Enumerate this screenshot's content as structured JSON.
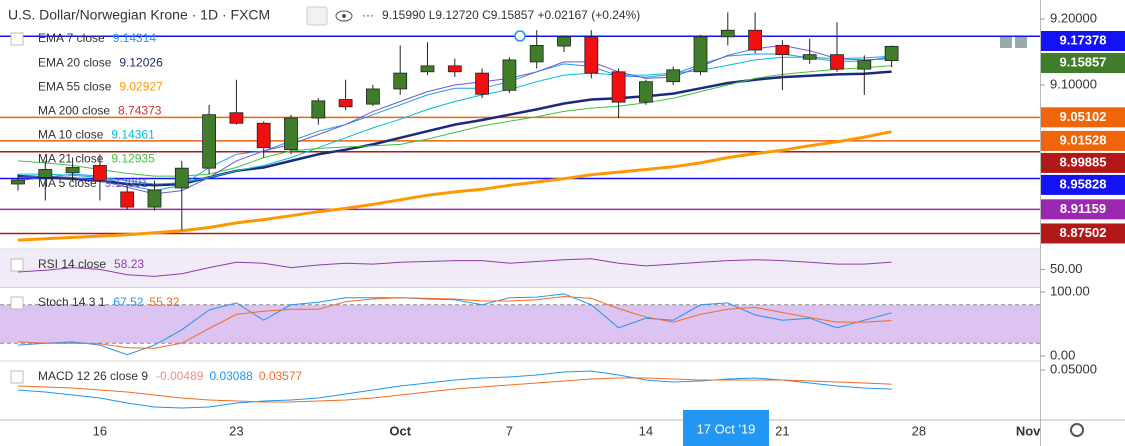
{
  "chart_data": [
    {
      "type": "candlestick",
      "title": "U.S. Dollar/Norwegian Krone · 1D · FXCM",
      "subtitle": "9.15990 L9.12720 C9.15857 +0.02167 (+0.24%)",
      "categories": [
        null,
        null,
        null,
        "16",
        null,
        null,
        null,
        null,
        "23",
        null,
        null,
        null,
        null,
        null,
        "Oct",
        null,
        null,
        null,
        "7",
        null,
        null,
        null,
        null,
        "14",
        null,
        null,
        null,
        null,
        "21",
        null,
        null,
        null,
        null,
        "28",
        null,
        null,
        null,
        "Nov"
      ],
      "open": [
        8.95,
        8.96,
        8.967,
        8.978,
        8.938,
        8.915,
        8.944,
        8.974,
        9.058,
        9.042,
        9.002,
        9.05,
        9.078,
        9.071,
        9.094,
        9.12,
        9.129,
        9.118,
        9.092,
        9.135,
        9.159,
        9.173,
        9.12,
        9.074,
        9.105,
        9.12,
        9.173,
        9.183,
        9.16,
        9.139,
        9.146,
        9.124,
        9.1369,
        null,
        null,
        null,
        null,
        null
      ],
      "high": [
        8.965,
        8.985,
        8.99,
        8.995,
        8.948,
        8.955,
        8.985,
        9.07,
        9.108,
        9.045,
        9.055,
        9.08,
        9.108,
        9.1,
        9.16,
        9.165,
        9.14,
        9.125,
        9.142,
        9.183,
        9.175,
        9.183,
        9.125,
        9.108,
        9.128,
        9.176,
        9.21,
        9.21,
        9.168,
        9.17,
        9.195,
        9.145,
        9.1599,
        null,
        null,
        null,
        null,
        null
      ],
      "low": [
        8.94,
        8.925,
        8.955,
        8.925,
        8.911,
        8.91,
        8.88,
        8.965,
        9.04,
        8.99,
        8.995,
        9.04,
        9.062,
        9.068,
        9.085,
        9.115,
        9.112,
        9.08,
        9.088,
        9.125,
        9.15,
        9.11,
        9.05,
        9.07,
        9.1,
        9.115,
        9.16,
        9.148,
        9.092,
        9.132,
        9.12,
        9.085,
        9.1272,
        null,
        null,
        null,
        null,
        null
      ],
      "close": [
        8.956,
        8.972,
        8.975,
        8.955,
        8.915,
        8.941,
        8.974,
        9.055,
        9.042,
        9.005,
        9.05,
        9.076,
        9.067,
        9.094,
        9.118,
        9.129,
        9.12,
        9.086,
        9.138,
        9.16,
        9.173,
        9.118,
        9.074,
        9.105,
        9.123,
        9.173,
        9.183,
        9.153,
        9.146,
        9.146,
        9.124,
        9.1369,
        9.15857,
        null,
        null,
        null,
        null,
        null
      ],
      "up_color": "#3f7d2b",
      "down_color": "#f20f0f",
      "ylim": [
        8.853,
        9.2288
      ],
      "yticks": [
        {
          "value": 9.2,
          "label": "9.20000"
        },
        {
          "value": 9.1,
          "label": "9.10000"
        }
      ],
      "last_price_label": "9.15857",
      "last_price_color": "#3f7d2b",
      "levels": [
        {
          "value": 9.17378,
          "label": "9.17378",
          "color": "#1212f5"
        },
        {
          "value": 9.05102,
          "label": "9.05102",
          "color": "#f0650a"
        },
        {
          "value": 9.01528,
          "label": "9.01528",
          "color": "#f0650a"
        },
        {
          "value": 8.99885,
          "label": "8.99885",
          "color": "#b21818"
        },
        {
          "value": 8.95828,
          "label": "8.95828",
          "color": "#1212f5"
        },
        {
          "value": 8.91159,
          "label": "8.91159",
          "color": "#9c27b0"
        },
        {
          "value": 8.87502,
          "label": "8.87502",
          "color": "#b21818"
        }
      ],
      "overlays": [
        {
          "name": "EMA 7 close",
          "value_label": "9.14314",
          "color": "#2196f3",
          "width": 1,
          "values": [
            8.955,
            8.96,
            8.965,
            8.962,
            8.948,
            8.94,
            8.948,
            8.975,
            8.995,
            9.0,
            9.015,
            9.03,
            9.04,
            9.055,
            9.07,
            9.085,
            9.095,
            9.095,
            9.105,
            9.12,
            9.132,
            9.128,
            9.114,
            9.112,
            9.116,
            9.131,
            9.144,
            9.147,
            9.147,
            9.141,
            9.136,
            9.136,
            9.14314,
            null,
            null,
            null,
            null,
            null
          ]
        },
        {
          "name": "EMA 20 close",
          "value_label": "9.12026",
          "color": "#1a2a80",
          "width": 2.5,
          "values": [
            8.962,
            8.96,
            8.958,
            8.955,
            8.95,
            8.948,
            8.95,
            8.96,
            8.97,
            8.975,
            8.985,
            8.995,
            9.002,
            9.01,
            9.02,
            9.03,
            9.04,
            9.047,
            9.055,
            9.063,
            9.072,
            9.078,
            9.08,
            9.083,
            9.087,
            9.095,
            9.103,
            9.108,
            9.112,
            9.114,
            9.116,
            9.117,
            9.12026,
            null,
            null,
            null,
            null,
            null
          ]
        },
        {
          "name": "EMA 55 close",
          "value_label": "9.02927",
          "color": "#ff9800",
          "width": 3,
          "values": [
            8.865,
            8.867,
            8.869,
            8.871,
            8.873,
            8.876,
            8.879,
            8.884,
            8.891,
            8.896,
            8.902,
            8.908,
            8.913,
            8.919,
            8.926,
            8.933,
            8.938,
            8.942,
            8.948,
            8.953,
            8.958,
            8.964,
            8.968,
            8.972,
            8.976,
            8.982,
            8.99,
            8.996,
            9.001,
            9.008,
            9.014,
            9.021,
            9.02927,
            null,
            null,
            null,
            null,
            null
          ]
        },
        {
          "name": "MA 200 close",
          "value_label": "8.74373",
          "color": "#d32f2f",
          "width": 1
        },
        {
          "name": "MA 10 close",
          "value_label": "9.14361",
          "color": "#00bcd4",
          "width": 1,
          "values": [
            8.965,
            8.965,
            8.963,
            8.96,
            8.955,
            8.95,
            8.952,
            8.96,
            8.97,
            8.978,
            8.99,
            9.005,
            9.02,
            9.035,
            9.048,
            9.063,
            9.075,
            9.085,
            9.093,
            9.105,
            9.115,
            9.118,
            9.115,
            9.115,
            9.118,
            9.122,
            9.13,
            9.138,
            9.142,
            9.142,
            9.14,
            9.141,
            9.14361,
            null,
            null,
            null,
            null,
            null
          ]
        },
        {
          "name": "MA 21 close",
          "value_label": "9.12935",
          "color": "#43c043",
          "width": 1,
          "values": [
            8.985,
            8.982,
            8.978,
            8.972,
            8.966,
            8.962,
            8.962,
            8.965,
            8.975,
            8.99,
            9.0,
            9.004,
            9.006,
            9.008,
            9.01,
            9.018,
            9.028,
            9.038,
            9.045,
            9.052,
            9.06,
            9.065,
            9.068,
            9.073,
            9.08,
            9.09,
            9.1,
            9.11,
            9.116,
            9.12,
            9.124,
            9.126,
            9.12935,
            null,
            null,
            null,
            null,
            null
          ]
        },
        {
          "name": "MA 5 close",
          "value_label": "9.13991",
          "color": "#6f5bc6",
          "width": 1,
          "values": [
            8.96,
            8.962,
            8.96,
            8.955,
            8.945,
            8.935,
            8.94,
            8.96,
            8.985,
            9.0,
            9.01,
            9.025,
            9.04,
            9.06,
            9.075,
            9.09,
            9.1,
            9.105,
            9.11,
            9.12,
            9.135,
            9.135,
            9.12,
            9.11,
            9.112,
            9.128,
            9.145,
            9.155,
            9.16,
            9.152,
            9.14,
            9.138,
            9.13991,
            null,
            null,
            null,
            null,
            null
          ]
        }
      ]
    },
    {
      "type": "line",
      "name": "RSI 14 close",
      "ylim": [
        30,
        72
      ],
      "yticks": [
        {
          "value": 50,
          "label": "50.00"
        }
      ],
      "series": [
        {
          "value_label": "58.23",
          "color": "#8e3bb5",
          "values": [
            47,
            49,
            52,
            50,
            44,
            42,
            45,
            52,
            58,
            57,
            52,
            55,
            57,
            56,
            58,
            59,
            60,
            60,
            57,
            59,
            61,
            62,
            57,
            54,
            56,
            58,
            60,
            61,
            60,
            58,
            56,
            56,
            58.23,
            null,
            null,
            null,
            null,
            null
          ]
        }
      ]
    },
    {
      "type": "line",
      "name": "Stoch 14 3 1",
      "ylim": [
        -6.25,
        106.25
      ],
      "yticks": [
        {
          "value": 100,
          "label": "100.00"
        },
        {
          "value": 0,
          "label": "0.00"
        }
      ],
      "bands": [
        20,
        80
      ],
      "series": [
        {
          "value_label": "67.52",
          "color": "#2196f3",
          "values": [
            17,
            20,
            22,
            17,
            2,
            17,
            41,
            72,
            83,
            56,
            80,
            84,
            91,
            91,
            91,
            89,
            88,
            80,
            91,
            92,
            97,
            80,
            44,
            59,
            56,
            80,
            83,
            64,
            56,
            59,
            44,
            56,
            67.52,
            null,
            null,
            null,
            null,
            null
          ]
        },
        {
          "value_label": "55.32",
          "color": "#f36c21",
          "values": [
            22,
            20,
            20,
            19,
            13,
            12,
            20,
            43,
            65,
            70,
            73,
            73,
            85,
            89,
            91,
            90,
            89,
            86,
            86,
            88,
            93,
            90,
            74,
            61,
            53,
            65,
            73,
            76,
            68,
            60,
            53,
            53,
            55.32,
            null,
            null,
            null,
            null,
            null
          ]
        }
      ]
    },
    {
      "type": "line",
      "name": "MACD 12 26 close 9",
      "ylim": [
        0,
        0.058
      ],
      "yticks": [
        {
          "value": 0.05,
          "label": "0.05000"
        }
      ],
      "readouts": [
        {
          "label": "-0.00489",
          "color": "#ef8c8c"
        }
      ],
      "series": [
        {
          "value_label": "0.03088",
          "color": "#2196f3",
          "values": [
            0.03,
            0.028,
            0.025,
            0.022,
            0.017,
            0.013,
            0.012,
            0.013,
            0.017,
            0.019,
            0.02,
            0.022,
            0.026,
            0.03,
            0.034,
            0.037,
            0.04,
            0.042,
            0.043,
            0.045,
            0.048,
            0.049,
            0.045,
            0.04,
            0.038,
            0.039,
            0.041,
            0.042,
            0.04,
            0.037,
            0.034,
            0.032,
            0.03088,
            null,
            null,
            null,
            null,
            null
          ]
        },
        {
          "value_label": "0.03577",
          "color": "#f36c21",
          "values": [
            0.034,
            0.033,
            0.032,
            0.03,
            0.028,
            0.025,
            0.022,
            0.02,
            0.019,
            0.018,
            0.018,
            0.019,
            0.02,
            0.022,
            0.025,
            0.028,
            0.031,
            0.033,
            0.035,
            0.037,
            0.039,
            0.041,
            0.042,
            0.042,
            0.041,
            0.04,
            0.04,
            0.04,
            0.04,
            0.039,
            0.038,
            0.037,
            0.03577,
            null,
            null,
            null,
            null,
            null
          ]
        }
      ]
    }
  ],
  "crosshair_label": "17 Oct '19"
}
